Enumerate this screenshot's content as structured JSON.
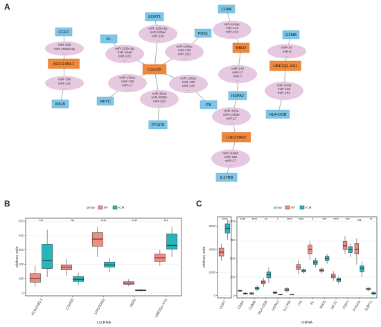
{
  "panel_labels": {
    "a": "A",
    "b": "B",
    "c": "C"
  },
  "network": {
    "nodes": [
      {
        "id": "CD8A",
        "kind": "mrna",
        "label": "CD8A"
      },
      {
        "id": "SORT1",
        "kind": "mrna",
        "label": "SORT1"
      },
      {
        "id": "CCR7",
        "kind": "mrna",
        "label": "CCR7"
      },
      {
        "id": "KL",
        "kind": "mrna",
        "label": "KL"
      },
      {
        "id": "PDK1",
        "kind": "mrna",
        "label": "PDK1"
      },
      {
        "id": "GZMB",
        "kind": "mrna",
        "label": "GZMB"
      },
      {
        "id": "MICB",
        "kind": "mrna",
        "label": "MICB"
      },
      {
        "id": "NFYC",
        "kind": "mrna",
        "label": "NFYC"
      },
      {
        "id": "ITK",
        "kind": "mrna",
        "label": "ITK"
      },
      {
        "id": "HSPA2",
        "kind": "mrna",
        "label": "HSPA2"
      },
      {
        "id": "HLA-DOB",
        "kind": "mrna",
        "label": "HLA-DOB"
      },
      {
        "id": "PTGFR",
        "kind": "mrna",
        "label": "PTGFR"
      },
      {
        "id": "IL17RB",
        "kind": "mrna",
        "label": "IL17RB"
      },
      {
        "id": "AC011483.1",
        "kind": "lncrna",
        "label": "AC011483.1"
      },
      {
        "id": "C3orf35",
        "kind": "lncrna",
        "label": "C3orf35"
      },
      {
        "id": "NBR2",
        "kind": "lncrna",
        "label": "NBR2"
      },
      {
        "id": "UBE2Q1-AS1",
        "kind": "lncrna",
        "label": "UBE2Q1-AS1"
      },
      {
        "id": "LINC00452",
        "kind": "lncrna",
        "label": "LINC00452"
      },
      {
        "id": "m1",
        "kind": "mirna",
        "lines": [
          "miR-125a-5p",
          "miR-130ac",
          "miR-140",
          "..."
        ]
      },
      {
        "id": "m2",
        "kind": "mirna",
        "lines": [
          "miR-145ac",
          "miR-143",
          "miR-204",
          "..."
        ]
      },
      {
        "id": "m3",
        "kind": "mirna",
        "lines": [
          "miR-339",
          "miR-196ab-5p",
          "..."
        ]
      },
      {
        "id": "m4",
        "kind": "mirna",
        "lines": [
          "miR-125a-5p",
          "miR-19ab",
          "miR-223",
          "..."
        ]
      },
      {
        "id": "m5",
        "kind": "mirna",
        "lines": [
          "miR-130ac",
          "miR-138",
          "miR-203",
          "..."
        ]
      },
      {
        "id": "m6",
        "kind": "mirna",
        "lines": [
          "miR-24",
          "miR-8",
          "..."
        ]
      },
      {
        "id": "m7",
        "kind": "mirna",
        "lines": [
          "miR-136",
          "miR-141",
          "..."
        ]
      },
      {
        "id": "m8",
        "kind": "mirna",
        "lines": [
          "miR-130ac",
          "miR-138",
          "miR-17",
          "..."
        ]
      },
      {
        "id": "m9",
        "kind": "mirna",
        "lines": [
          "miR-130ac",
          "miR-138",
          "miR-140",
          "..."
        ]
      },
      {
        "id": "m10",
        "kind": "mirna",
        "lines": [
          "miR-143",
          "miR-17",
          "miR-7",
          "..."
        ]
      },
      {
        "id": "m11",
        "kind": "mirna",
        "lines": [
          "miR-103a",
          "miR-138",
          "miR-182",
          "..."
        ]
      },
      {
        "id": "m12",
        "kind": "mirna",
        "lines": [
          "miR-19ab",
          "miR-200bc",
          "miR-203",
          "..."
        ]
      },
      {
        "id": "m13",
        "kind": "mirna",
        "lines": [
          "miR-103a",
          "miR-135ab",
          "miR-17",
          "..."
        ]
      },
      {
        "id": "m14",
        "kind": "mirna",
        "lines": [
          "miR-10abc",
          "miR-132",
          "miR-17",
          "..."
        ]
      }
    ],
    "edges": [
      [
        "SORT1",
        "m1"
      ],
      [
        "CCR7",
        "m3"
      ],
      [
        "m3",
        "AC011483.1"
      ],
      [
        "AC011483.1",
        "m7"
      ],
      [
        "m7",
        "MICB"
      ],
      [
        "KL",
        "m4"
      ],
      [
        "m4",
        "C3orf35"
      ],
      [
        "m1",
        "C3orf35"
      ],
      [
        "PDK1",
        "m5"
      ],
      [
        "m5",
        "C3orf35"
      ],
      [
        "C3orf35",
        "m8"
      ],
      [
        "m8",
        "NFYC"
      ],
      [
        "C3orf35",
        "m12"
      ],
      [
        "m12",
        "PTGFR"
      ],
      [
        "C3orf35",
        "m9"
      ],
      [
        "m9",
        "ITK"
      ],
      [
        "CD8A",
        "m2"
      ],
      [
        "m2",
        "NBR2"
      ],
      [
        "NBR2",
        "m10"
      ],
      [
        "m10",
        "HSPA2"
      ],
      [
        "HSPA2",
        "m13"
      ],
      [
        "m13",
        "LINC00452"
      ],
      [
        "LINC00452",
        "m14"
      ],
      [
        "m14",
        "IL17RB"
      ],
      [
        "GZMB",
        "m6"
      ],
      [
        "m6",
        "UBE2Q1-AS1"
      ],
      [
        "UBE2Q1-AS1",
        "m11"
      ],
      [
        "m11",
        "HLA-DOB"
      ]
    ]
  },
  "chart_b": {
    "type": "box",
    "legend_title": "group",
    "groups": [
      {
        "name": "NF",
        "color": "#F28B82"
      },
      {
        "name": "ICM",
        "color": "#26B5B8"
      }
    ],
    "ylabel": "arbitrary units",
    "xlabel": "LncRNA",
    "yticks": [
      0,
      100,
      200,
      300,
      400,
      500
    ],
    "ylim": [
      -20,
      520
    ],
    "categories": [
      "AC011483.1",
      "C3orf35",
      "LINC00452",
      "NBR2",
      "UBE2Q1-AS1"
    ],
    "significance": [
      "***",
      "***",
      "****",
      "****",
      "***"
    ],
    "boxes": [
      {
        "NF": {
          "min": 45,
          "q1": 75,
          "median": 100,
          "q3": 135,
          "max": 190
        },
        "ICM": {
          "min": 110,
          "q1": 170,
          "median": 225,
          "q3": 340,
          "max": 440
        }
      },
      {
        "NF": {
          "min": 120,
          "q1": 160,
          "median": 180,
          "q3": 195,
          "max": 235
        },
        "ICM": {
          "min": 55,
          "q1": 80,
          "median": 95,
          "q3": 115,
          "max": 140
        }
      },
      {
        "NF": {
          "min": 250,
          "q1": 325,
          "median": 375,
          "q3": 420,
          "max": 460
        },
        "ICM": {
          "min": 145,
          "q1": 180,
          "median": 195,
          "q3": 215,
          "max": 245
        }
      },
      {
        "NF": {
          "min": 45,
          "q1": 60,
          "median": 68,
          "q3": 78,
          "max": 95
        },
        "ICM": {
          "min": 10,
          "q1": 15,
          "median": 18,
          "q3": 22,
          "max": 28
        }
      },
      {
        "NF": {
          "min": 190,
          "q1": 220,
          "median": 245,
          "q3": 270,
          "max": 300
        },
        "ICM": {
          "min": 250,
          "q1": 305,
          "median": 330,
          "q3": 410,
          "max": 460
        }
      }
    ]
  },
  "chart_c": {
    "type": "box",
    "legend_title": "group",
    "groups": [
      {
        "name": "NF",
        "color": "#F28B82"
      },
      {
        "name": "ICM",
        "color": "#26B5B8"
      }
    ],
    "ylabel": "arbitrary units",
    "xlabel": "mRNA",
    "left": {
      "yticks": [
        0,
        2000,
        4000,
        6000
      ],
      "ylim": [
        -200,
        6800
      ],
      "categories": [
        "CCR7"
      ],
      "significance": [
        "****"
      ],
      "boxes": [
        {
          "NF": {
            "min": 3000,
            "q1": 3400,
            "median": 3750,
            "q3": 4100,
            "max": 4500
          },
          "ICM": {
            "min": 4800,
            "q1": 5400,
            "median": 5800,
            "q3": 6200,
            "max": 6600
          }
        }
      ]
    },
    "right": {
      "yticks": [
        0,
        250,
        500,
        750,
        1000
      ],
      "ylim": [
        -30,
        1060
      ],
      "categories": [
        "CD8A",
        "GZMB",
        "HLA-DOB",
        "HSPA2",
        "IL17RB",
        "ITK",
        "KL",
        "MICB",
        "NFYC",
        "PDK1",
        "PTGFR",
        "SORT1"
      ],
      "significance": [
        "****",
        "****",
        "**",
        "*",
        "****",
        "****",
        "*",
        "***",
        "****",
        "***",
        "ns",
        "**"
      ],
      "boxes": [
        {
          "NF": {
            "min": 50,
            "q1": 60,
            "median": 65,
            "q3": 72,
            "max": 80
          },
          "ICM": {
            "min": 15,
            "q1": 22,
            "median": 28,
            "q3": 35,
            "max": 45
          }
        },
        {
          "NF": {
            "min": 10,
            "q1": 20,
            "median": 28,
            "q3": 38,
            "max": 55
          },
          "ICM": {
            "min": 60,
            "q1": 85,
            "median": 100,
            "q3": 115,
            "max": 140
          }
        },
        {
          "NF": {
            "min": 120,
            "q1": 160,
            "median": 185,
            "q3": 200,
            "max": 240
          },
          "ICM": {
            "min": 170,
            "q1": 240,
            "median": 280,
            "q3": 320,
            "max": 380
          }
        },
        {
          "NF": {
            "min": 20,
            "q1": 32,
            "median": 40,
            "q3": 50,
            "max": 65
          },
          "ICM": {
            "min": 5,
            "q1": 10,
            "median": 14,
            "q3": 18,
            "max": 25
          }
        },
        {
          "NF": {
            "min": 40,
            "q1": 65,
            "median": 80,
            "q3": 95,
            "max": 115
          },
          "ICM": {
            "min": 5,
            "q1": 10,
            "median": 14,
            "q3": 18,
            "max": 25
          }
        },
        {
          "NF": {
            "min": 290,
            "q1": 350,
            "median": 385,
            "q3": 420,
            "max": 470
          },
          "ICM": {
            "min": 300,
            "q1": 320,
            "median": 335,
            "q3": 350,
            "max": 370
          }
        },
        {
          "NF": {
            "min": 480,
            "q1": 560,
            "median": 620,
            "q3": 680,
            "max": 740
          },
          "ICM": {
            "min": 380,
            "q1": 420,
            "median": 450,
            "q3": 475,
            "max": 510
          }
        },
        {
          "NF": {
            "min": 300,
            "q1": 325,
            "median": 340,
            "q3": 360,
            "max": 380
          },
          "ICM": {
            "min": 430,
            "q1": 470,
            "median": 500,
            "q3": 530,
            "max": 560
          }
        },
        {
          "NF": {
            "min": 200,
            "q1": 240,
            "median": 260,
            "q3": 290,
            "max": 330
          },
          "ICM": {
            "min": 160,
            "q1": 190,
            "median": 215,
            "q3": 235,
            "max": 260
          }
        },
        {
          "NF": {
            "min": 560,
            "q1": 620,
            "median": 670,
            "q3": 730,
            "max": 800
          },
          "ICM": {
            "min": 520,
            "q1": 580,
            "median": 620,
            "q3": 660,
            "max": 700
          }
        },
        {
          "NF": {
            "min": 420,
            "q1": 560,
            "median": 620,
            "q3": 700,
            "max": 770
          },
          "ICM": {
            "min": 250,
            "q1": 320,
            "median": 370,
            "q3": 400,
            "max": 460
          }
        },
        {
          "NF": {
            "min": 60,
            "q1": 80,
            "median": 90,
            "q3": 100,
            "max": 115
          },
          "ICM": {
            "min": 10,
            "q1": 20,
            "median": 30,
            "q3": 45,
            "max": 60
          }
        }
      ]
    }
  }
}
